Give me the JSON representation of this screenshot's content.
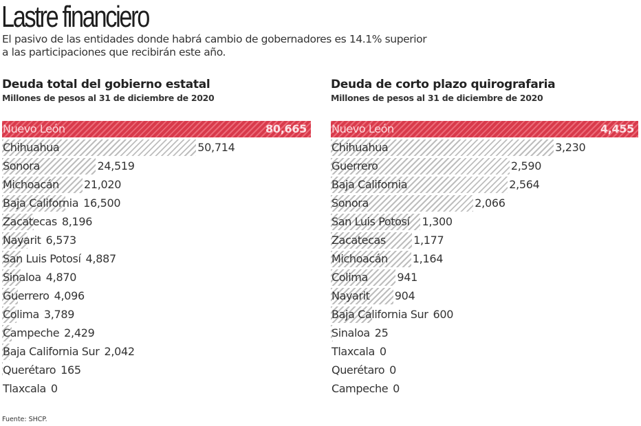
{
  "header": {
    "title": "Lastre financiero",
    "dek_line1": "El pasivo de las entidades donde habrá cambio de gobernadores es 14.1% superior",
    "dek_line2": "a las participaciones que recibirán este año."
  },
  "colors": {
    "highlight": "#d83a4b",
    "hatch": "#bdbdbd",
    "text": "#333333"
  },
  "left": {
    "title": "Deuda total del gobierno estatal",
    "subtitle": "Millones de pesos al 31 de diciembre de 2020",
    "rows": [
      {
        "label": "Nuevo León",
        "value": "80,665",
        "num": 80665,
        "highlight": true
      },
      {
        "label": "Chihuahua",
        "value": "50,714",
        "num": 50714
      },
      {
        "label": "Sonora",
        "value": "24,519",
        "num": 24519
      },
      {
        "label": "Michoacán",
        "value": "21,020",
        "num": 21020
      },
      {
        "label": "Baja California",
        "value": "16,500",
        "num": 16500
      },
      {
        "label": "Zacatecas",
        "value": "8,196",
        "num": 8196
      },
      {
        "label": "Nayarit",
        "value": "6,573",
        "num": 6573
      },
      {
        "label": "San Luis Potosí",
        "value": "4,887",
        "num": 4887
      },
      {
        "label": "Sinaloa",
        "value": "4,870",
        "num": 4870
      },
      {
        "label": "Guerrero",
        "value": "4,096",
        "num": 4096
      },
      {
        "label": "Colima",
        "value": "3,789",
        "num": 3789
      },
      {
        "label": "Campeche",
        "value": "2,429",
        "num": 2429
      },
      {
        "label": "Baja California Sur",
        "value": "2,042",
        "num": 2042
      },
      {
        "label": "Querétaro",
        "value": "165",
        "num": 165
      },
      {
        "label": "Tlaxcala",
        "value": "0",
        "num": 0
      }
    ]
  },
  "right": {
    "title": "Deuda de corto plazo quirografaria",
    "subtitle": "Millones de pesos al 31 de diciembre de 2020",
    "rows": [
      {
        "label": "Nuevo León",
        "value": "4,455",
        "num": 4455,
        "highlight": true
      },
      {
        "label": "Chihuahua",
        "value": "3,230",
        "num": 3230
      },
      {
        "label": "Guerrero",
        "value": "2,590",
        "num": 2590
      },
      {
        "label": "Baja California",
        "value": "2,564",
        "num": 2564
      },
      {
        "label": "Sonora",
        "value": "2,066",
        "num": 2066
      },
      {
        "label": "San Luis Potosí",
        "value": "1,300",
        "num": 1300
      },
      {
        "label": "Zacatecas",
        "value": "1,177",
        "num": 1177
      },
      {
        "label": "Michoacán",
        "value": "1,164",
        "num": 1164
      },
      {
        "label": "Colima",
        "value": "941",
        "num": 941
      },
      {
        "label": "Nayarit",
        "value": "904",
        "num": 904
      },
      {
        "label": "Baja California Sur",
        "value": "600",
        "num": 600
      },
      {
        "label": "Sinaloa",
        "value": "25",
        "num": 25
      },
      {
        "label": "Tlaxcala",
        "value": "0",
        "num": 0
      },
      {
        "label": "Querétaro",
        "value": "0",
        "num": 0
      },
      {
        "label": "Campeche",
        "value": "0",
        "num": 0
      }
    ]
  },
  "footer": {
    "source": "Fuente: SHCP."
  },
  "chart_data": [
    {
      "type": "bar",
      "orientation": "horizontal",
      "title": "Deuda total del gobierno estatal",
      "subtitle": "Millones de pesos al 31 de diciembre de 2020",
      "categories": [
        "Nuevo León",
        "Chihuahua",
        "Sonora",
        "Michoacán",
        "Baja California",
        "Zacatecas",
        "Nayarit",
        "San Luis Potosí",
        "Sinaloa",
        "Guerrero",
        "Colima",
        "Campeche",
        "Baja California Sur",
        "Querétaro",
        "Tlaxcala"
      ],
      "values": [
        80665,
        50714,
        24519,
        21020,
        16500,
        8196,
        6573,
        4887,
        4870,
        4096,
        3789,
        2429,
        2042,
        165,
        0
      ],
      "highlight": "Nuevo León",
      "xlabel": "",
      "ylabel": "",
      "grid": false,
      "legend": null
    },
    {
      "type": "bar",
      "orientation": "horizontal",
      "title": "Deuda de corto plazo quirografaria",
      "subtitle": "Millones de pesos al 31 de diciembre de 2020",
      "categories": [
        "Nuevo León",
        "Chihuahua",
        "Guerrero",
        "Baja California",
        "Sonora",
        "San Luis Potosí",
        "Zacatecas",
        "Michoacán",
        "Colima",
        "Nayarit",
        "Baja California Sur",
        "Sinaloa",
        "Tlaxcala",
        "Querétaro",
        "Campeche"
      ],
      "values": [
        4455,
        3230,
        2590,
        2564,
        2066,
        1300,
        1177,
        1164,
        941,
        904,
        600,
        25,
        0,
        0,
        0
      ],
      "highlight": "Nuevo León",
      "xlabel": "",
      "ylabel": "",
      "grid": false,
      "legend": null
    }
  ]
}
